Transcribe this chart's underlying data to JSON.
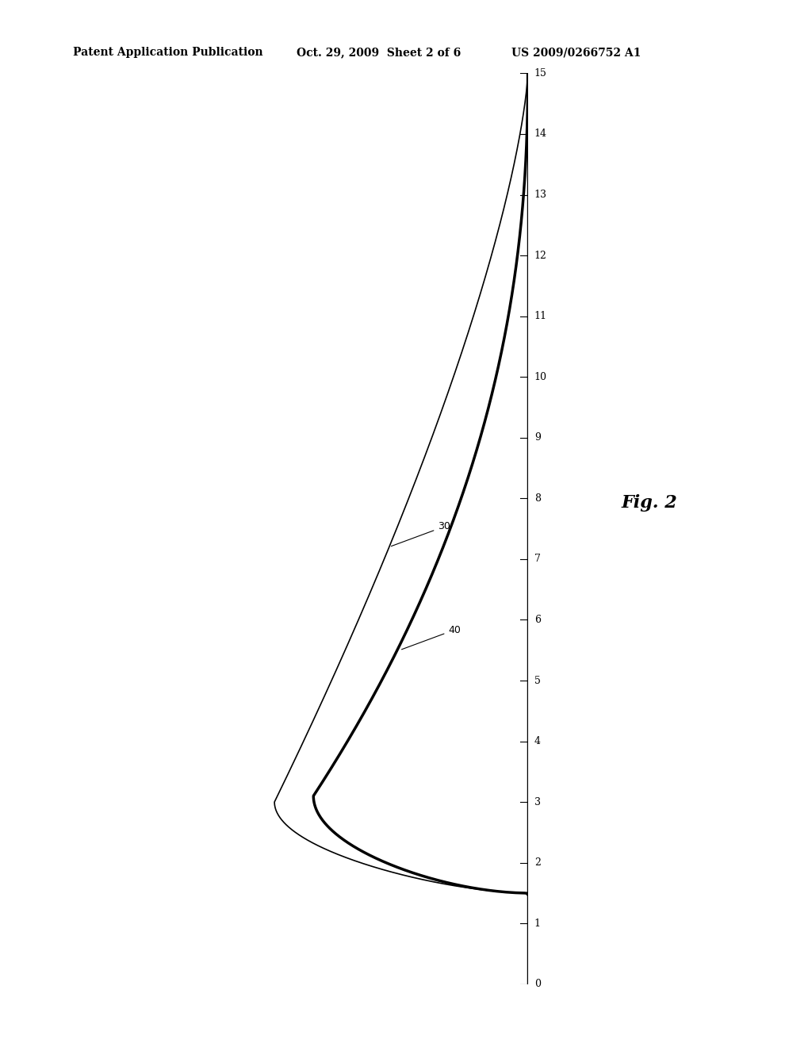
{
  "title_left": "Patent Application Publication",
  "title_mid": "Oct. 29, 2009  Sheet 2 of 6",
  "title_right": "US 2009/0266752 A1",
  "fig_label": "Fig. 2",
  "y_min": 0,
  "y_max": 15,
  "y_ticks": [
    0,
    1,
    2,
    3,
    4,
    5,
    6,
    7,
    8,
    9,
    10,
    11,
    12,
    13,
    14,
    15
  ],
  "label_30": "30",
  "label_40": "40",
  "bg_color": "#ffffff",
  "line_color_thin": "#000000",
  "line_color_thick": "#000000"
}
